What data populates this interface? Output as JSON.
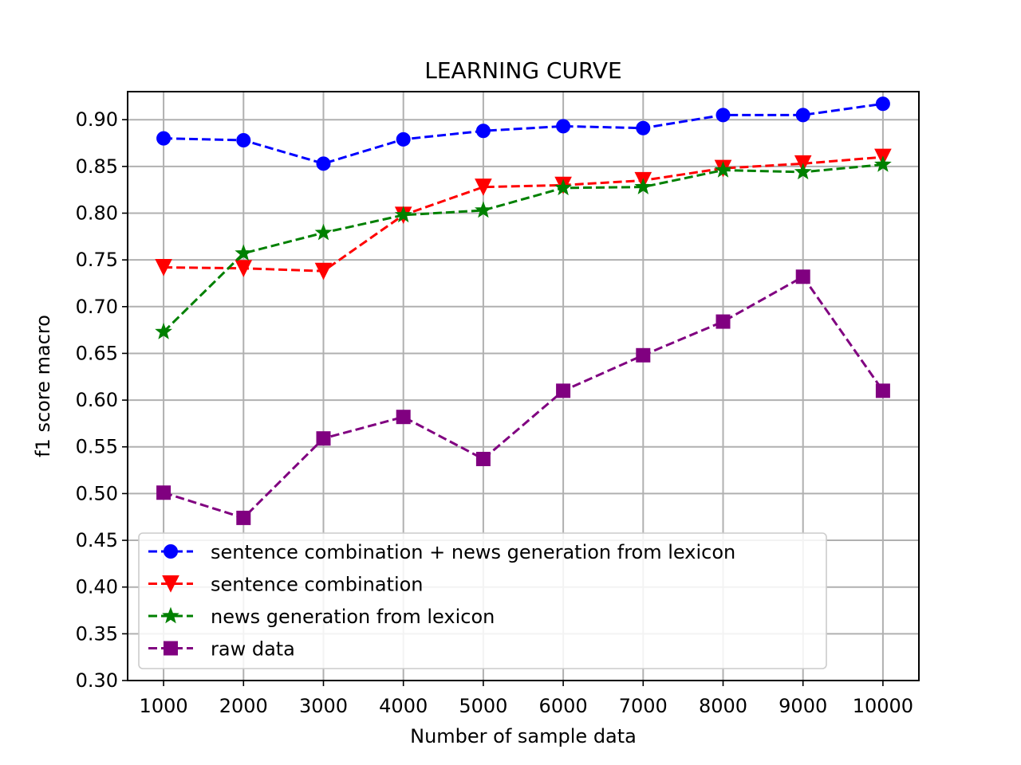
{
  "chart_data": {
    "type": "line",
    "title": "LEARNING CURVE",
    "xlabel": "Number of sample data",
    "ylabel": "f1 score macro",
    "x": [
      1000,
      2000,
      3000,
      4000,
      5000,
      6000,
      7000,
      8000,
      9000,
      10000
    ],
    "x_tick_labels": [
      "1000",
      "2000",
      "3000",
      "4000",
      "5000",
      "6000",
      "7000",
      "8000",
      "9000",
      "10000"
    ],
    "y_ticks": [
      0.3,
      0.35,
      0.4,
      0.45,
      0.5,
      0.55,
      0.6,
      0.65,
      0.7,
      0.75,
      0.8,
      0.85,
      0.9
    ],
    "y_tick_labels": [
      "0.30",
      "0.35",
      "0.40",
      "0.45",
      "0.50",
      "0.55",
      "0.60",
      "0.65",
      "0.70",
      "0.75",
      "0.80",
      "0.85",
      "0.90"
    ],
    "xlim": [
      550,
      10450
    ],
    "ylim": [
      0.3,
      0.93
    ],
    "grid": true,
    "legend_position": "lower-left",
    "series": [
      {
        "name": "sentence combination + news generation from lexicon",
        "color": "#0000ff",
        "marker": "circle",
        "line_style": "dashed",
        "values": [
          0.88,
          0.878,
          0.853,
          0.879,
          0.888,
          0.893,
          0.891,
          0.905,
          0.905,
          0.917
        ]
      },
      {
        "name": "sentence combination",
        "color": "#ff0000",
        "marker": "triangle-down",
        "line_style": "dashed",
        "values": [
          0.742,
          0.741,
          0.738,
          0.798,
          0.828,
          0.83,
          0.835,
          0.848,
          0.853,
          0.86
        ]
      },
      {
        "name": "news generation from lexicon",
        "color": "#008000",
        "marker": "star",
        "line_style": "dashed",
        "values": [
          0.673,
          0.757,
          0.779,
          0.798,
          0.803,
          0.827,
          0.828,
          0.846,
          0.844,
          0.852
        ]
      },
      {
        "name": "raw data",
        "color": "#800080",
        "marker": "square",
        "line_style": "dashed",
        "values": [
          0.501,
          0.474,
          0.559,
          0.582,
          0.537,
          0.61,
          0.648,
          0.684,
          0.732,
          0.61
        ]
      }
    ]
  }
}
